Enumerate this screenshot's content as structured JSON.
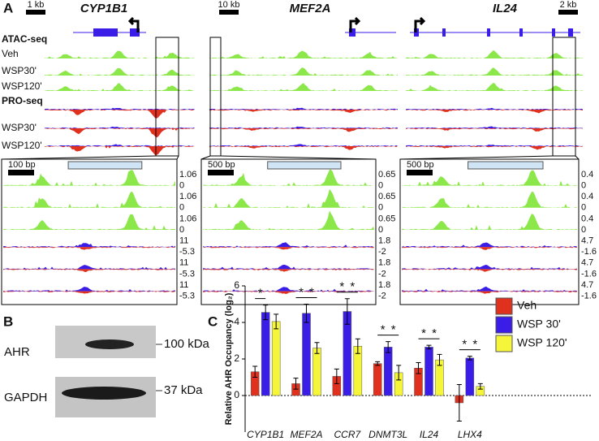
{
  "panel_labels": [
    "A",
    "B",
    "C"
  ],
  "panel_a": {
    "assays": [
      "ATAC-seq",
      "PRO-seq"
    ],
    "atac_tracks": [
      "Veh",
      "WSP30'",
      "WSP120'"
    ],
    "pro_tracks": [
      "WSP30'",
      "WSP120'"
    ],
    "genes": [
      {
        "name": "CYP1B1",
        "scale": "1 kb",
        "zoom_scale": "100 bp",
        "scale_labels": [
          "1.06",
          "0",
          "1.06",
          "0",
          "1.06",
          "0",
          "11",
          "-5.3",
          "11",
          "-5.3",
          "11",
          "-5.3"
        ]
      },
      {
        "name": "MEF2A",
        "scale": "10 kb",
        "zoom_scale": "500 bp",
        "scale_labels": [
          "0.65",
          "0",
          "0.65",
          "0",
          "0.65",
          "0",
          "1.8",
          "-2",
          "1.8",
          "-2",
          "1.8",
          "-2"
        ]
      },
      {
        "name": "IL24",
        "scale": "2 kb",
        "zoom_scale": "500 bp",
        "scale_labels": [
          "0.4",
          "0",
          "0.4",
          "0",
          "0.4",
          "0",
          "4.7",
          "-1.6",
          "4.7",
          "-1.6",
          "4.7",
          "-1.6"
        ]
      }
    ]
  },
  "panel_b": {
    "proteins": [
      "AHR",
      "GAPDH"
    ],
    "sizes": [
      "100 kDa",
      "37 kDa"
    ]
  },
  "chart_data": {
    "type": "bar",
    "y_label": "Relative AHR Occupancy  (log₂)",
    "categories": [
      "CYP1B1",
      "MEF2A",
      "CCR7",
      "DNMT3L",
      "IL24",
      "LHX4"
    ],
    "series": [
      {
        "name": "Veh",
        "color": "#e0301e",
        "values": [
          1.3,
          0.65,
          1.05,
          1.75,
          1.5,
          -0.4
        ],
        "errors": [
          0.3,
          0.3,
          0.4,
          0.1,
          0.3,
          1.0
        ]
      },
      {
        "name": "WSP 30'",
        "color": "#3a1ee8",
        "values": [
          4.55,
          4.5,
          4.6,
          2.65,
          2.65,
          2.05
        ],
        "errors": [
          0.4,
          0.5,
          0.7,
          0.3,
          0.1,
          0.1
        ]
      },
      {
        "name": "WSP 120'",
        "color": "#f5f53a",
        "values": [
          4.05,
          2.6,
          2.7,
          1.25,
          1.95,
          0.5
        ],
        "errors": [
          0.4,
          0.3,
          0.4,
          0.4,
          0.3,
          0.15
        ]
      }
    ],
    "significance": [
      [
        "*"
      ],
      [
        "*",
        "*"
      ],
      [
        "*",
        "*"
      ],
      [
        "*",
        "*"
      ],
      [
        "*",
        "*"
      ],
      [
        "*",
        "*"
      ]
    ],
    "ylim": [
      -2,
      6
    ],
    "yticks": [
      0,
      2,
      4,
      6
    ]
  }
}
